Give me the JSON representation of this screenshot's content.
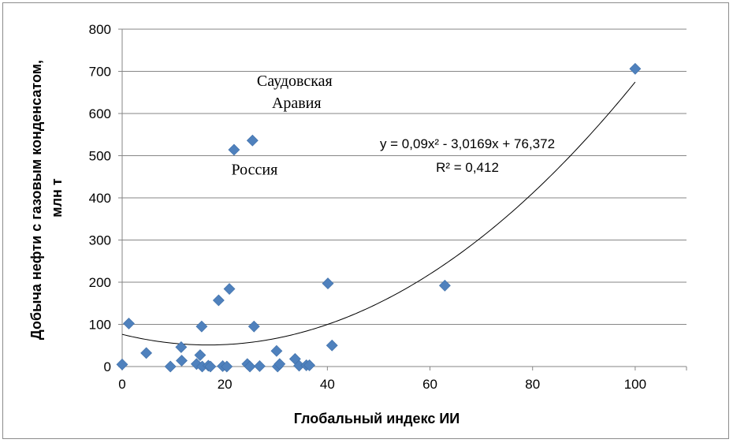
{
  "chart_data": {
    "type": "scatter",
    "xlabel": "Глобальный индекс ИИ",
    "ylabel_lines": [
      "Добыча нефти с газовым конденсатом,",
      "млн т"
    ],
    "xlim": [
      0,
      110
    ],
    "ylim": [
      0,
      800
    ],
    "xticks": [
      0,
      20,
      40,
      60,
      80,
      100
    ],
    "yticks": [
      0,
      100,
      200,
      300,
      400,
      500,
      600,
      700,
      800
    ],
    "grid": "horizontal",
    "marker": "diamond",
    "color": "#4f81bd",
    "points": [
      {
        "x": 0,
        "y": 5
      },
      {
        "x": 1.3,
        "y": 102
      },
      {
        "x": 4.7,
        "y": 32
      },
      {
        "x": 9.4,
        "y": 0
      },
      {
        "x": 11.5,
        "y": 46
      },
      {
        "x": 11.6,
        "y": 14
      },
      {
        "x": 14.5,
        "y": 6
      },
      {
        "x": 15.2,
        "y": 27
      },
      {
        "x": 15.5,
        "y": 95
      },
      {
        "x": 15.6,
        "y": 0
      },
      {
        "x": 16.8,
        "y": 2
      },
      {
        "x": 17.2,
        "y": 0
      },
      {
        "x": 18.8,
        "y": 157
      },
      {
        "x": 19.6,
        "y": 1
      },
      {
        "x": 20.4,
        "y": 0
      },
      {
        "x": 20.9,
        "y": 184
      },
      {
        "x": 21.8,
        "y": 514
      },
      {
        "x": 24.4,
        "y": 6
      },
      {
        "x": 24.9,
        "y": 0
      },
      {
        "x": 25.4,
        "y": 536
      },
      {
        "x": 25.7,
        "y": 95
      },
      {
        "x": 26.8,
        "y": 1
      },
      {
        "x": 30.1,
        "y": 37
      },
      {
        "x": 30.3,
        "y": 0
      },
      {
        "x": 30.7,
        "y": 6
      },
      {
        "x": 33.7,
        "y": 18
      },
      {
        "x": 34.5,
        "y": 2
      },
      {
        "x": 35.9,
        "y": 3
      },
      {
        "x": 36.5,
        "y": 3
      },
      {
        "x": 40.1,
        "y": 197
      },
      {
        "x": 40.9,
        "y": 50
      },
      {
        "x": 62.9,
        "y": 192
      },
      {
        "x": 100,
        "y": 706
      }
    ],
    "trendline": {
      "type": "polynomial",
      "coefficients": {
        "a": 0.09,
        "b": -3.0169,
        "c": 76.372
      },
      "x_range": [
        0,
        100
      ],
      "equation_label": "y = 0,09x² - 3,0169x + 76,372",
      "r2_label": "R² = 0,412"
    },
    "annotations": [
      {
        "id": "saudi",
        "lines": [
          "Саудовская",
          "Аравия"
        ],
        "x": 34,
        "y": 665
      },
      {
        "id": "russia",
        "lines": [
          "Россия"
        ],
        "x": 25.8,
        "y": 455
      }
    ]
  }
}
